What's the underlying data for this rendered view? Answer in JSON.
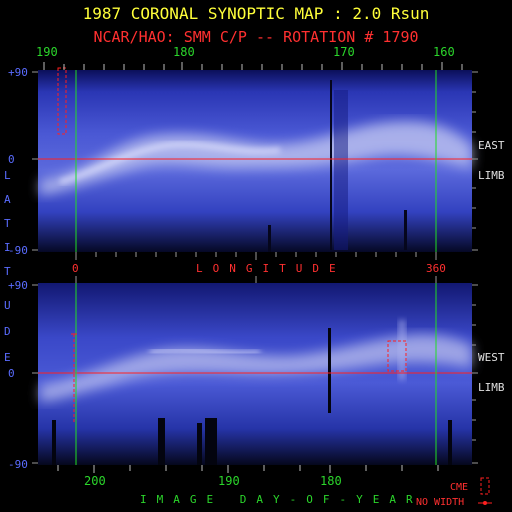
{
  "header": {
    "title": "1987 CORONAL SYNOPTIC MAP : 2.0 Rsun",
    "subtitle": "NCAR/HAO: SMM C/P -- ROTATION # 1790"
  },
  "top_map": {
    "top_axis_labels": [
      "190",
      "180",
      "170",
      "160"
    ],
    "lat_labels": [
      "+90",
      "0",
      "-90"
    ],
    "side_label_1": "EAST",
    "side_label_2": "LIMB"
  },
  "middle": {
    "long_start": "0",
    "long_label": "LONGITUDE",
    "long_end": "360",
    "latitude_letters": [
      "L",
      "A",
      "T",
      "I",
      "T",
      "U",
      "D",
      "E"
    ]
  },
  "bottom_map": {
    "lat_labels": [
      "+90",
      "0",
      "-90"
    ],
    "side_label_1": "WEST",
    "side_label_2": "LIMB",
    "bottom_axis_labels": [
      "200",
      "190",
      "180"
    ],
    "axis_title": "IMAGE DAY-OF-YEAR"
  },
  "legend": {
    "cme_label": "CME",
    "no_width_label": "NO WIDTH"
  },
  "colors": {
    "title": "#ffff3a",
    "subtitle": "#ff3030",
    "axis_green": "#2bd62b",
    "lat_blue": "#5a6cff",
    "grid_red": "#ff2020"
  }
}
